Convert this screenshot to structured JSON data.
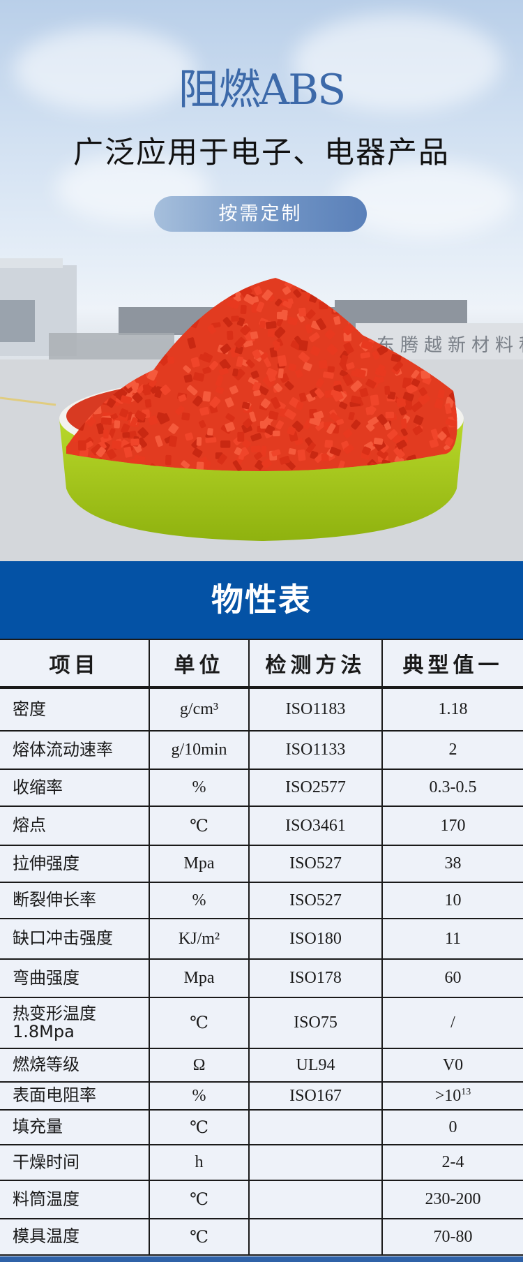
{
  "hero": {
    "title": "阻燃ABS",
    "subtitle": "广泛应用于电子、电器产品",
    "button_label": "按需定制",
    "sign_text": "东腾越新材料科",
    "colors": {
      "title": "#3c69a9",
      "pellet": "#e8321c",
      "bowl": "#a6c91e"
    }
  },
  "section": {
    "title": "物性表",
    "color": "#0452a5"
  },
  "table": {
    "headers": [
      "项目",
      "单位",
      "检测方法",
      "典型值一"
    ],
    "rows": [
      {
        "item": "密度",
        "unit": "g/cm³",
        "method": "ISO1183",
        "value": "1.18"
      },
      {
        "item": "熔体流动速率",
        "unit": "g/10min",
        "method": "ISO1133",
        "value": "2"
      },
      {
        "item": "收缩率",
        "unit": "%",
        "method": "ISO2577",
        "value": "0.3-0.5"
      },
      {
        "item": "熔点",
        "unit": "℃",
        "method": "ISO3461",
        "value": "170"
      },
      {
        "item": "拉伸强度",
        "unit": "Mpa",
        "method": "ISO527",
        "value": "38"
      },
      {
        "item": "断裂伸长率",
        "unit": "%",
        "method": "ISO527",
        "value": "10"
      },
      {
        "item": "缺口冲击强度",
        "unit": "KJ/m²",
        "method": "ISO180",
        "value": "11"
      },
      {
        "item": "弯曲强度",
        "unit": "Mpa",
        "method": "ISO178",
        "value": "60"
      },
      {
        "item": "热变形温度 1.8Mpa",
        "unit": "℃",
        "method": "ISO75",
        "value": "/"
      },
      {
        "item": "燃烧等级",
        "unit": "Ω",
        "method": "UL94",
        "value": "V0"
      },
      {
        "item": "表面电阻率",
        "unit": "%",
        "method": "ISO167",
        "value": ">10",
        "value_sup": "13"
      },
      {
        "item": "填充量",
        "unit": "℃",
        "method": "",
        "value": "0"
      },
      {
        "item": "干燥时间",
        "unit": "h",
        "method": "",
        "value": "2-4"
      },
      {
        "item": "料筒温度",
        "unit": "℃",
        "method": "",
        "value": "230-200"
      },
      {
        "item": "模具温度",
        "unit": "℃",
        "method": "",
        "value": "70-80"
      }
    ]
  }
}
